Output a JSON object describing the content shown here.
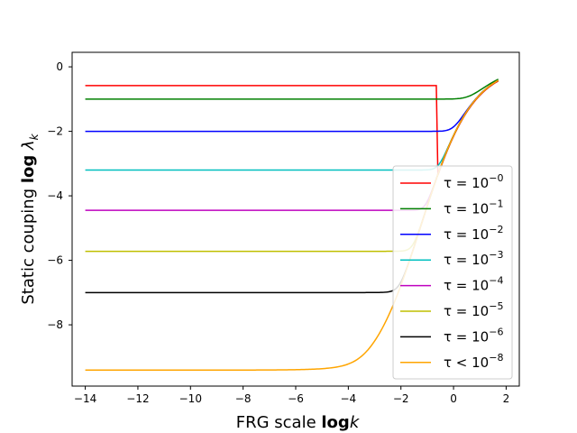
{
  "chart_data": {
    "type": "line",
    "xlabel": {
      "prefix": "FRG scale ",
      "bold": "log",
      "italic": "k"
    },
    "ylabel": {
      "prefix": "Static couping  ",
      "bold": "log",
      "symbol": "λ",
      "subscript": "k"
    },
    "xlim": [
      -14.5,
      2.5
    ],
    "ylim": [
      -9.9,
      0.45
    ],
    "xticks": [
      -14,
      -12,
      -10,
      -8,
      -6,
      -4,
      -2,
      0,
      2
    ],
    "yticks": [
      0,
      -2,
      -4,
      -6,
      -8
    ],
    "xtick_labels": [
      "−14",
      "−12",
      "−10",
      "−8",
      "−6",
      "−4",
      "−2",
      "0",
      "2"
    ],
    "ytick_labels": [
      "0",
      "−2",
      "−4",
      "−6",
      "−8"
    ],
    "grid": false,
    "legend_position": "lower right",
    "x_range": [
      -14,
      1.7
    ],
    "series": [
      {
        "name": "τ = 10",
        "exponent": "−0",
        "color": "#ff0000",
        "plateau": -0.58
      },
      {
        "name": "τ = 10",
        "exponent": "−1",
        "color": "#008000",
        "plateau": -1.0
      },
      {
        "name": "τ = 10",
        "exponent": "−2",
        "color": "#0000ff",
        "plateau": -2.0
      },
      {
        "name": "τ = 10",
        "exponent": "−3",
        "color": "#00bfbf",
        "plateau": -3.2
      },
      {
        "name": "τ = 10",
        "exponent": "−4",
        "color": "#bf00bf",
        "plateau": -4.45
      },
      {
        "name": "τ = 10",
        "exponent": "−5",
        "color": "#bfbf00",
        "plateau": -5.72
      },
      {
        "name": "τ = 10",
        "exponent": "−6",
        "color": "#000000",
        "plateau": -7.0
      },
      {
        "name": "τ < 10",
        "exponent": "−8",
        "color": "#ffa500",
        "plateau": -9.45
      }
    ]
  }
}
